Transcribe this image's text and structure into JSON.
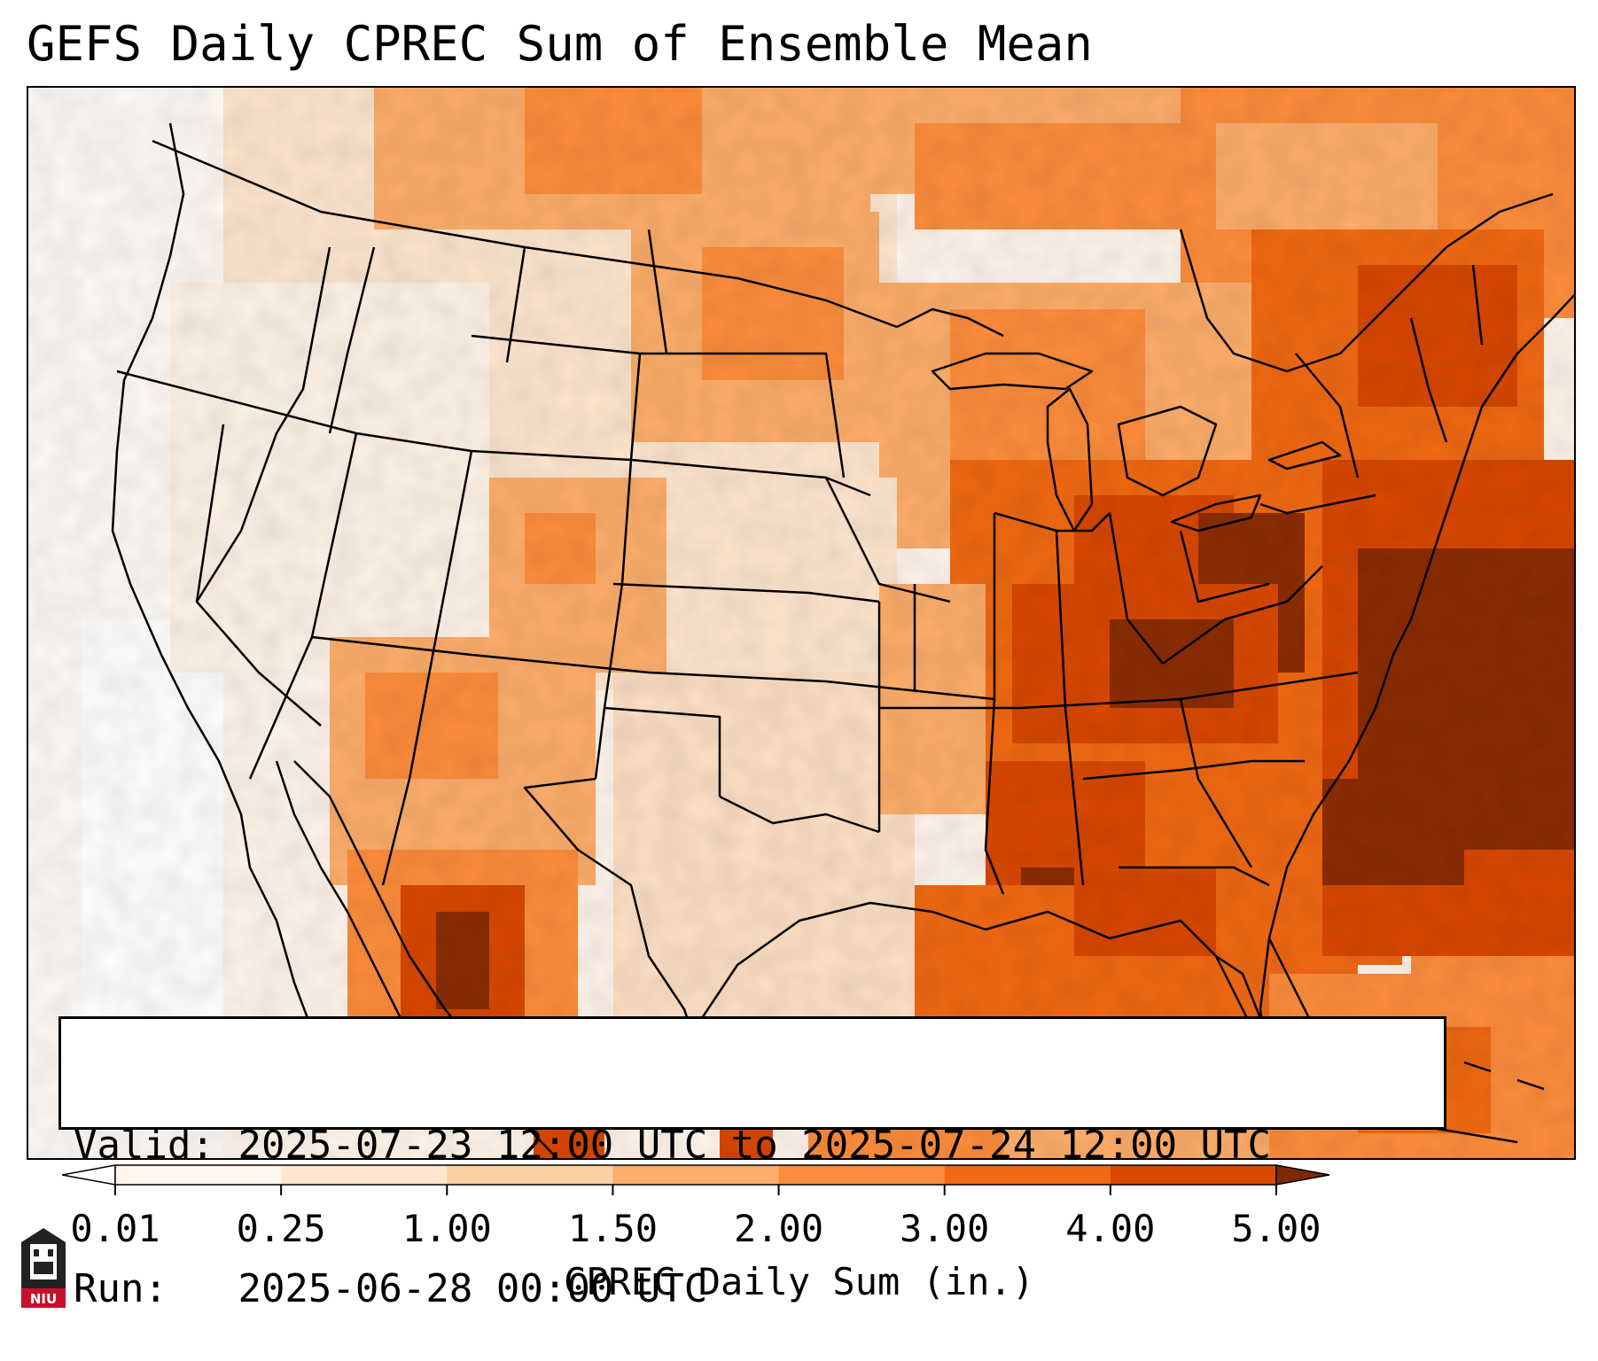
{
  "title": "GEFS Daily CPREC Sum of Ensemble Mean",
  "info": {
    "valid_label": "Valid:",
    "valid_value": "2025-07-23 12:00 UTC to 2025-07-24 12:00 UTC",
    "run_label": "Run:",
    "run_value": "2025-06-28 00:00 UTC"
  },
  "colorbar": {
    "label": "CPREC Daily Sum (in.)",
    "ticks": [
      "0.01",
      "0.25",
      "1.00",
      "1.50",
      "2.00",
      "3.00",
      "4.00",
      "5.00"
    ],
    "colors": [
      "#fff5eb",
      "#fee6ce",
      "#fdd0a2",
      "#fdae6b",
      "#fd8d3c",
      "#f16913",
      "#d94801",
      "#8c2d04"
    ],
    "under_color": "#ffffff",
    "over_color": "#7f2704"
  },
  "logo": {
    "text": "NIU",
    "primary_color": "#c8102e"
  }
}
